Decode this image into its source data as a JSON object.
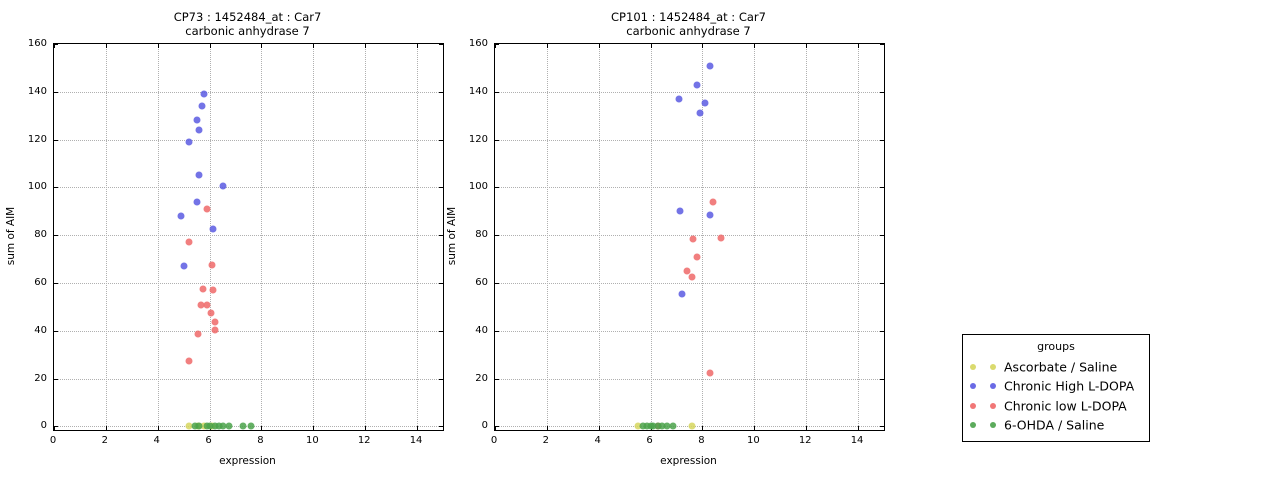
{
  "legend": {
    "title": "groups",
    "entries": [
      {
        "label": "Ascorbate / Saline",
        "color": "#d6d65e"
      },
      {
        "label": "Chronic High L-DOPA",
        "color": "#5a5ae2"
      },
      {
        "label": "Chronic low L-DOPA",
        "color": "#ef6868"
      },
      {
        "label": "6-OHDA / Saline",
        "color": "#4aa24a"
      }
    ]
  },
  "chart_data": [
    {
      "type": "scatter",
      "title_line1": "CP73 : 1452484_at : Car7",
      "title_line2": "carbonic anhydrase 7",
      "xlabel": "expression",
      "ylabel": "sum of AIM",
      "xlim": [
        0,
        15
      ],
      "ylim": [
        -1.5,
        160
      ],
      "xticks": [
        0,
        2,
        4,
        6,
        8,
        10,
        12,
        14
      ],
      "yticks": [
        0,
        20,
        40,
        60,
        80,
        100,
        120,
        140,
        160
      ],
      "grid": true,
      "series": [
        {
          "name": "Ascorbate / Saline",
          "color": "#d6d65e",
          "points": [
            [
              5.2,
              0
            ],
            [
              5.55,
              0
            ],
            [
              5.8,
              0
            ],
            [
              6.1,
              0
            ]
          ]
        },
        {
          "name": "Chronic High L-DOPA",
          "color": "#5a5ae2",
          "points": [
            [
              5.8,
              139
            ],
            [
              5.7,
              134
            ],
            [
              5.5,
              128
            ],
            [
              5.6,
              124
            ],
            [
              5.2,
              119
            ],
            [
              5.6,
              105
            ],
            [
              6.5,
              100.5
            ],
            [
              5.5,
              94
            ],
            [
              4.9,
              88
            ],
            [
              6.15,
              82.5
            ],
            [
              5.0,
              67
            ]
          ]
        },
        {
          "name": "Chronic low L-DOPA",
          "color": "#ef6868",
          "points": [
            [
              5.9,
              91
            ],
            [
              5.2,
              77
            ],
            [
              6.1,
              67.5
            ],
            [
              5.75,
              57.5
            ],
            [
              6.15,
              57
            ],
            [
              5.65,
              51
            ],
            [
              5.9,
              51
            ],
            [
              6.05,
              47.5
            ],
            [
              6.2,
              43.5
            ],
            [
              6.2,
              40.5
            ],
            [
              5.55,
              38.5
            ],
            [
              5.2,
              27.5
            ]
          ]
        },
        {
          "name": "6-OHDA / Saline",
          "color": "#4aa24a",
          "points": [
            [
              5.45,
              0
            ],
            [
              5.6,
              0
            ],
            [
              5.9,
              0
            ],
            [
              6.0,
              0
            ],
            [
              6.2,
              0
            ],
            [
              6.35,
              0
            ],
            [
              6.5,
              0
            ],
            [
              6.75,
              0
            ],
            [
              7.3,
              0
            ],
            [
              7.6,
              0
            ]
          ]
        }
      ]
    },
    {
      "type": "scatter",
      "title_line1": "CP101 : 1452484_at : Car7",
      "title_line2": "carbonic anhydrase 7",
      "xlabel": "expression",
      "ylabel": "sum of AIM",
      "xlim": [
        0,
        15
      ],
      "ylim": [
        -1.5,
        160
      ],
      "xticks": [
        0,
        2,
        4,
        6,
        8,
        10,
        12,
        14
      ],
      "yticks": [
        0,
        20,
        40,
        60,
        80,
        100,
        120,
        140,
        160
      ],
      "grid": true,
      "series": [
        {
          "name": "Ascorbate / Saline",
          "color": "#d6d65e",
          "points": [
            [
              5.5,
              0
            ],
            [
              7.6,
              0
            ]
          ]
        },
        {
          "name": "Chronic High L-DOPA",
          "color": "#5a5ae2",
          "points": [
            [
              8.3,
              151
            ],
            [
              7.8,
              143
            ],
            [
              7.1,
              137
            ],
            [
              8.1,
              135.5
            ],
            [
              7.9,
              131
            ],
            [
              7.15,
              90
            ],
            [
              8.3,
              88.5
            ],
            [
              7.2,
              55.5
            ]
          ]
        },
        {
          "name": "Chronic low L-DOPA",
          "color": "#ef6868",
          "points": [
            [
              8.4,
              94
            ],
            [
              8.7,
              79
            ],
            [
              7.65,
              78.5
            ],
            [
              7.8,
              71
            ],
            [
              7.4,
              65
            ],
            [
              7.6,
              62.5
            ],
            [
              8.3,
              22.5
            ],
            [
              6.3,
              0
            ]
          ]
        },
        {
          "name": "6-OHDA / Saline",
          "color": "#4aa24a",
          "points": [
            [
              5.7,
              0
            ],
            [
              5.85,
              0
            ],
            [
              6.0,
              0
            ],
            [
              6.1,
              0
            ],
            [
              6.3,
              0
            ],
            [
              6.45,
              0
            ],
            [
              6.65,
              0
            ],
            [
              6.85,
              0
            ]
          ]
        }
      ]
    }
  ]
}
